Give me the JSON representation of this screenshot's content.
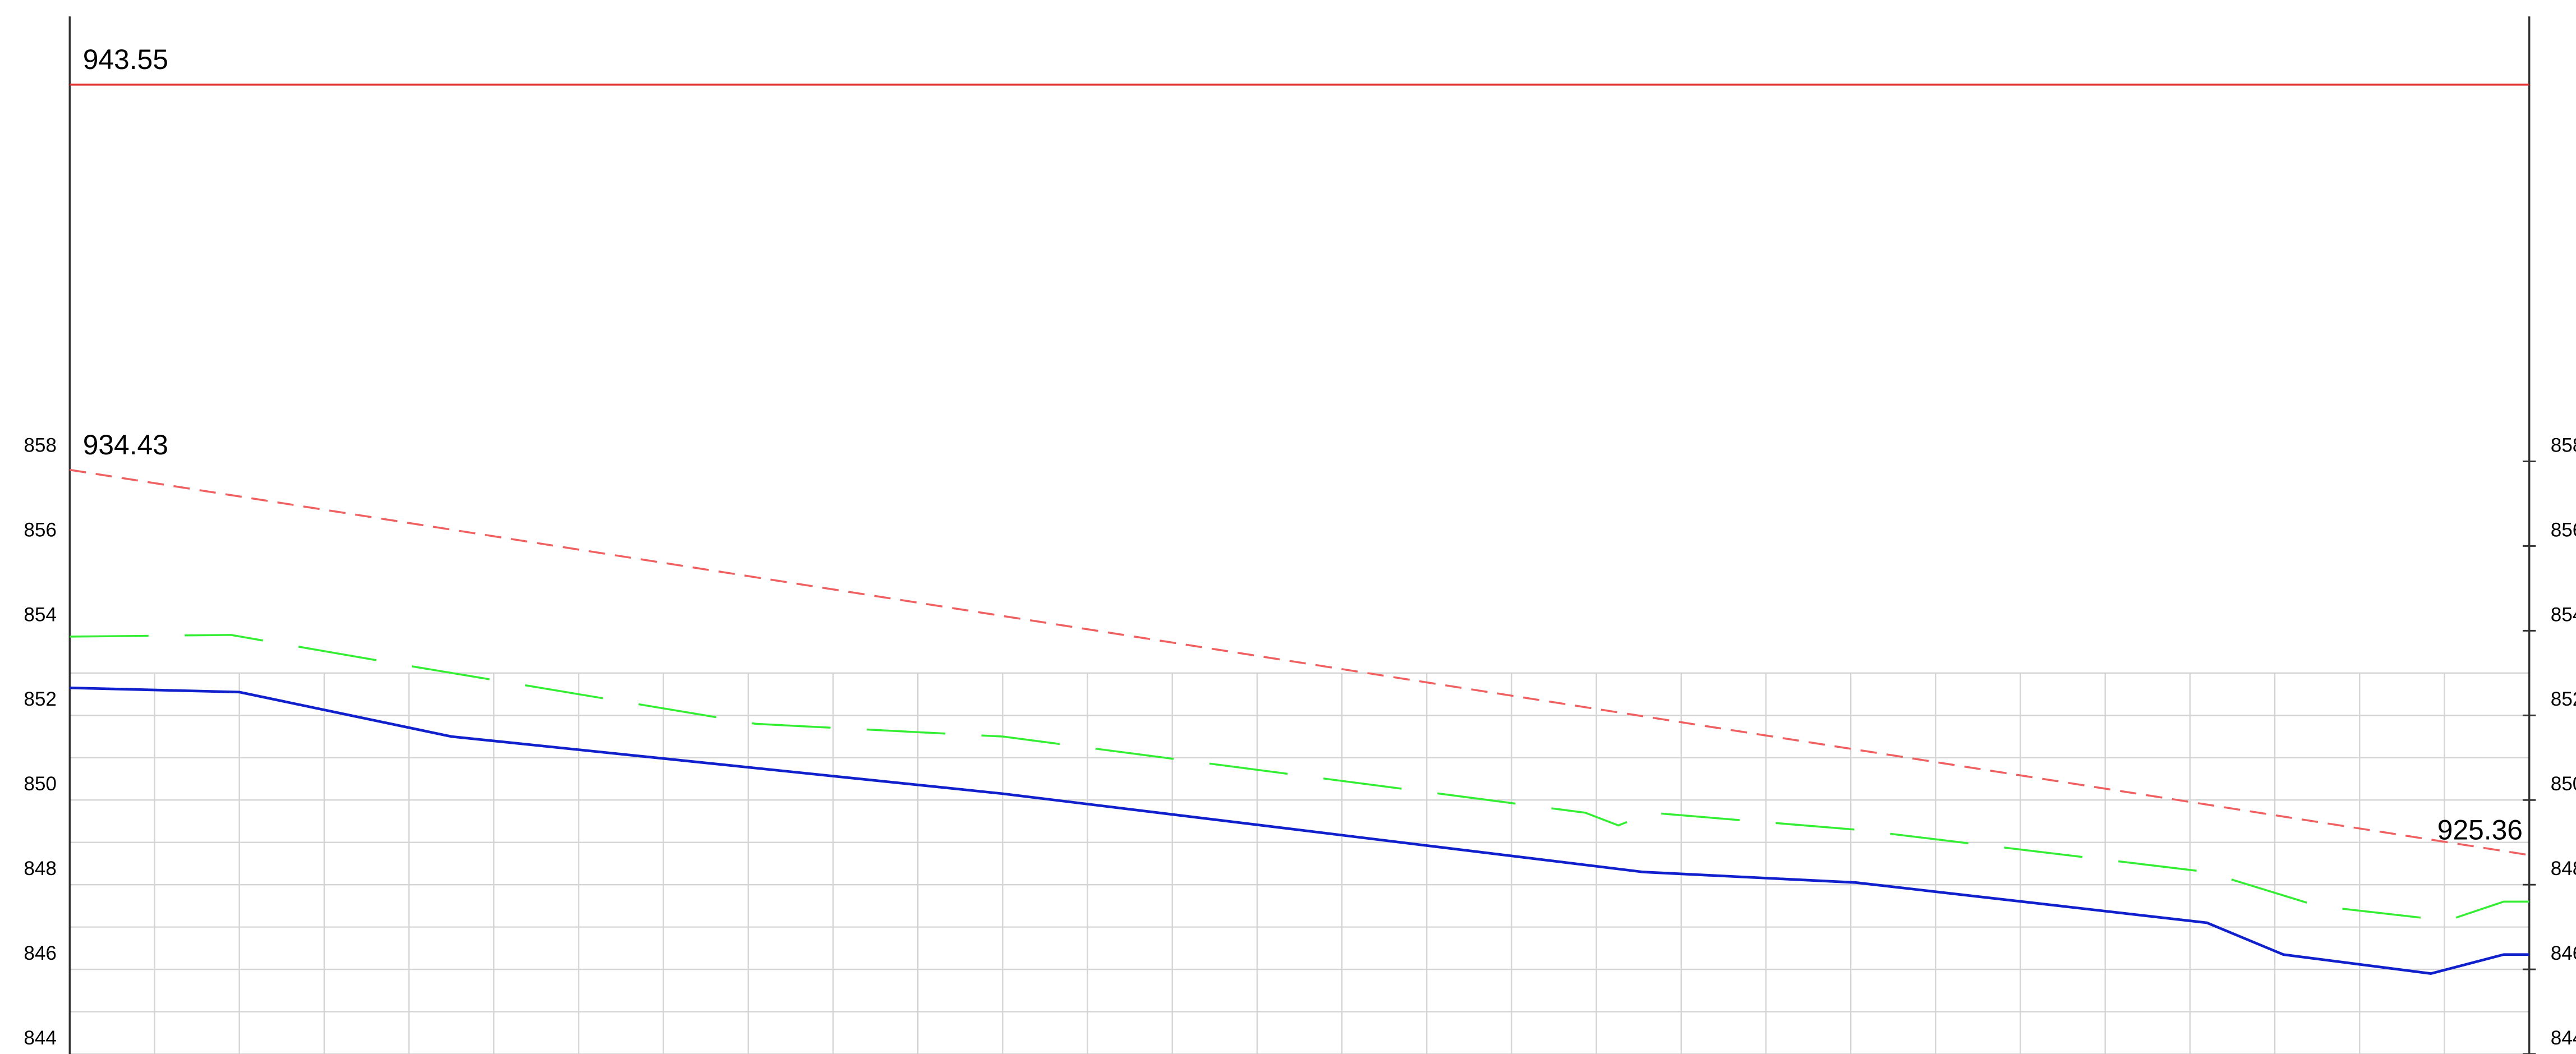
{
  "chart_data": {
    "type": "line",
    "ylim": [
      844,
      868.9
    ],
    "yticks": [
      844,
      846,
      848,
      850,
      852,
      854,
      856,
      858
    ],
    "ygrid": [
      844,
      845,
      846,
      847,
      848,
      849,
      850,
      851,
      852,
      853
    ],
    "xlim": [
      0,
      29
    ],
    "xticks": [
      0,
      1,
      2,
      3,
      4,
      5,
      6,
      7,
      8,
      9,
      10,
      11,
      12,
      13,
      14,
      15,
      16,
      17,
      18,
      19,
      20,
      21,
      22,
      23,
      24,
      25,
      26,
      27,
      28,
      29
    ],
    "grid": true,
    "series": [
      {
        "color": "#e23030",
        "style": "solid",
        "x": [
          0,
          29
        ],
        "values": [
          866.9,
          866.9
        ]
      },
      {
        "color": "#f06060",
        "style": "dashed",
        "x": [
          0,
          29
        ],
        "values": [
          857.8,
          848.7
        ]
      },
      {
        "color": "#33ee33",
        "style": "longdash",
        "x": [
          0,
          1.9,
          4.03,
          8.09,
          11,
          17.87,
          18.26,
          18.64,
          21.06,
          25.2,
          26.5,
          28.03,
          28.7,
          29
        ],
        "values": [
          853.86,
          853.9,
          853.16,
          851.8,
          851.5,
          849.7,
          849.4,
          849.7,
          849.3,
          848.3,
          847.5,
          847.15,
          847.6,
          847.6
        ]
      },
      {
        "color": "#1020cc",
        "style": "solid",
        "x": [
          0,
          2,
          4.5,
          11,
          18.55,
          21.06,
          25.2,
          26.1,
          27.84,
          28.7,
          29
        ],
        "values": [
          852.65,
          852.55,
          851.5,
          850.15,
          848.3,
          848.05,
          847.1,
          846.35,
          845.9,
          846.35,
          846.35
        ]
      }
    ],
    "annotations": [
      {
        "text": "943.55",
        "series": 0,
        "end": "start"
      },
      {
        "text": "934.43",
        "series": 1,
        "end": "start"
      },
      {
        "text": "925.36",
        "series": 1,
        "end": "end"
      }
    ]
  }
}
